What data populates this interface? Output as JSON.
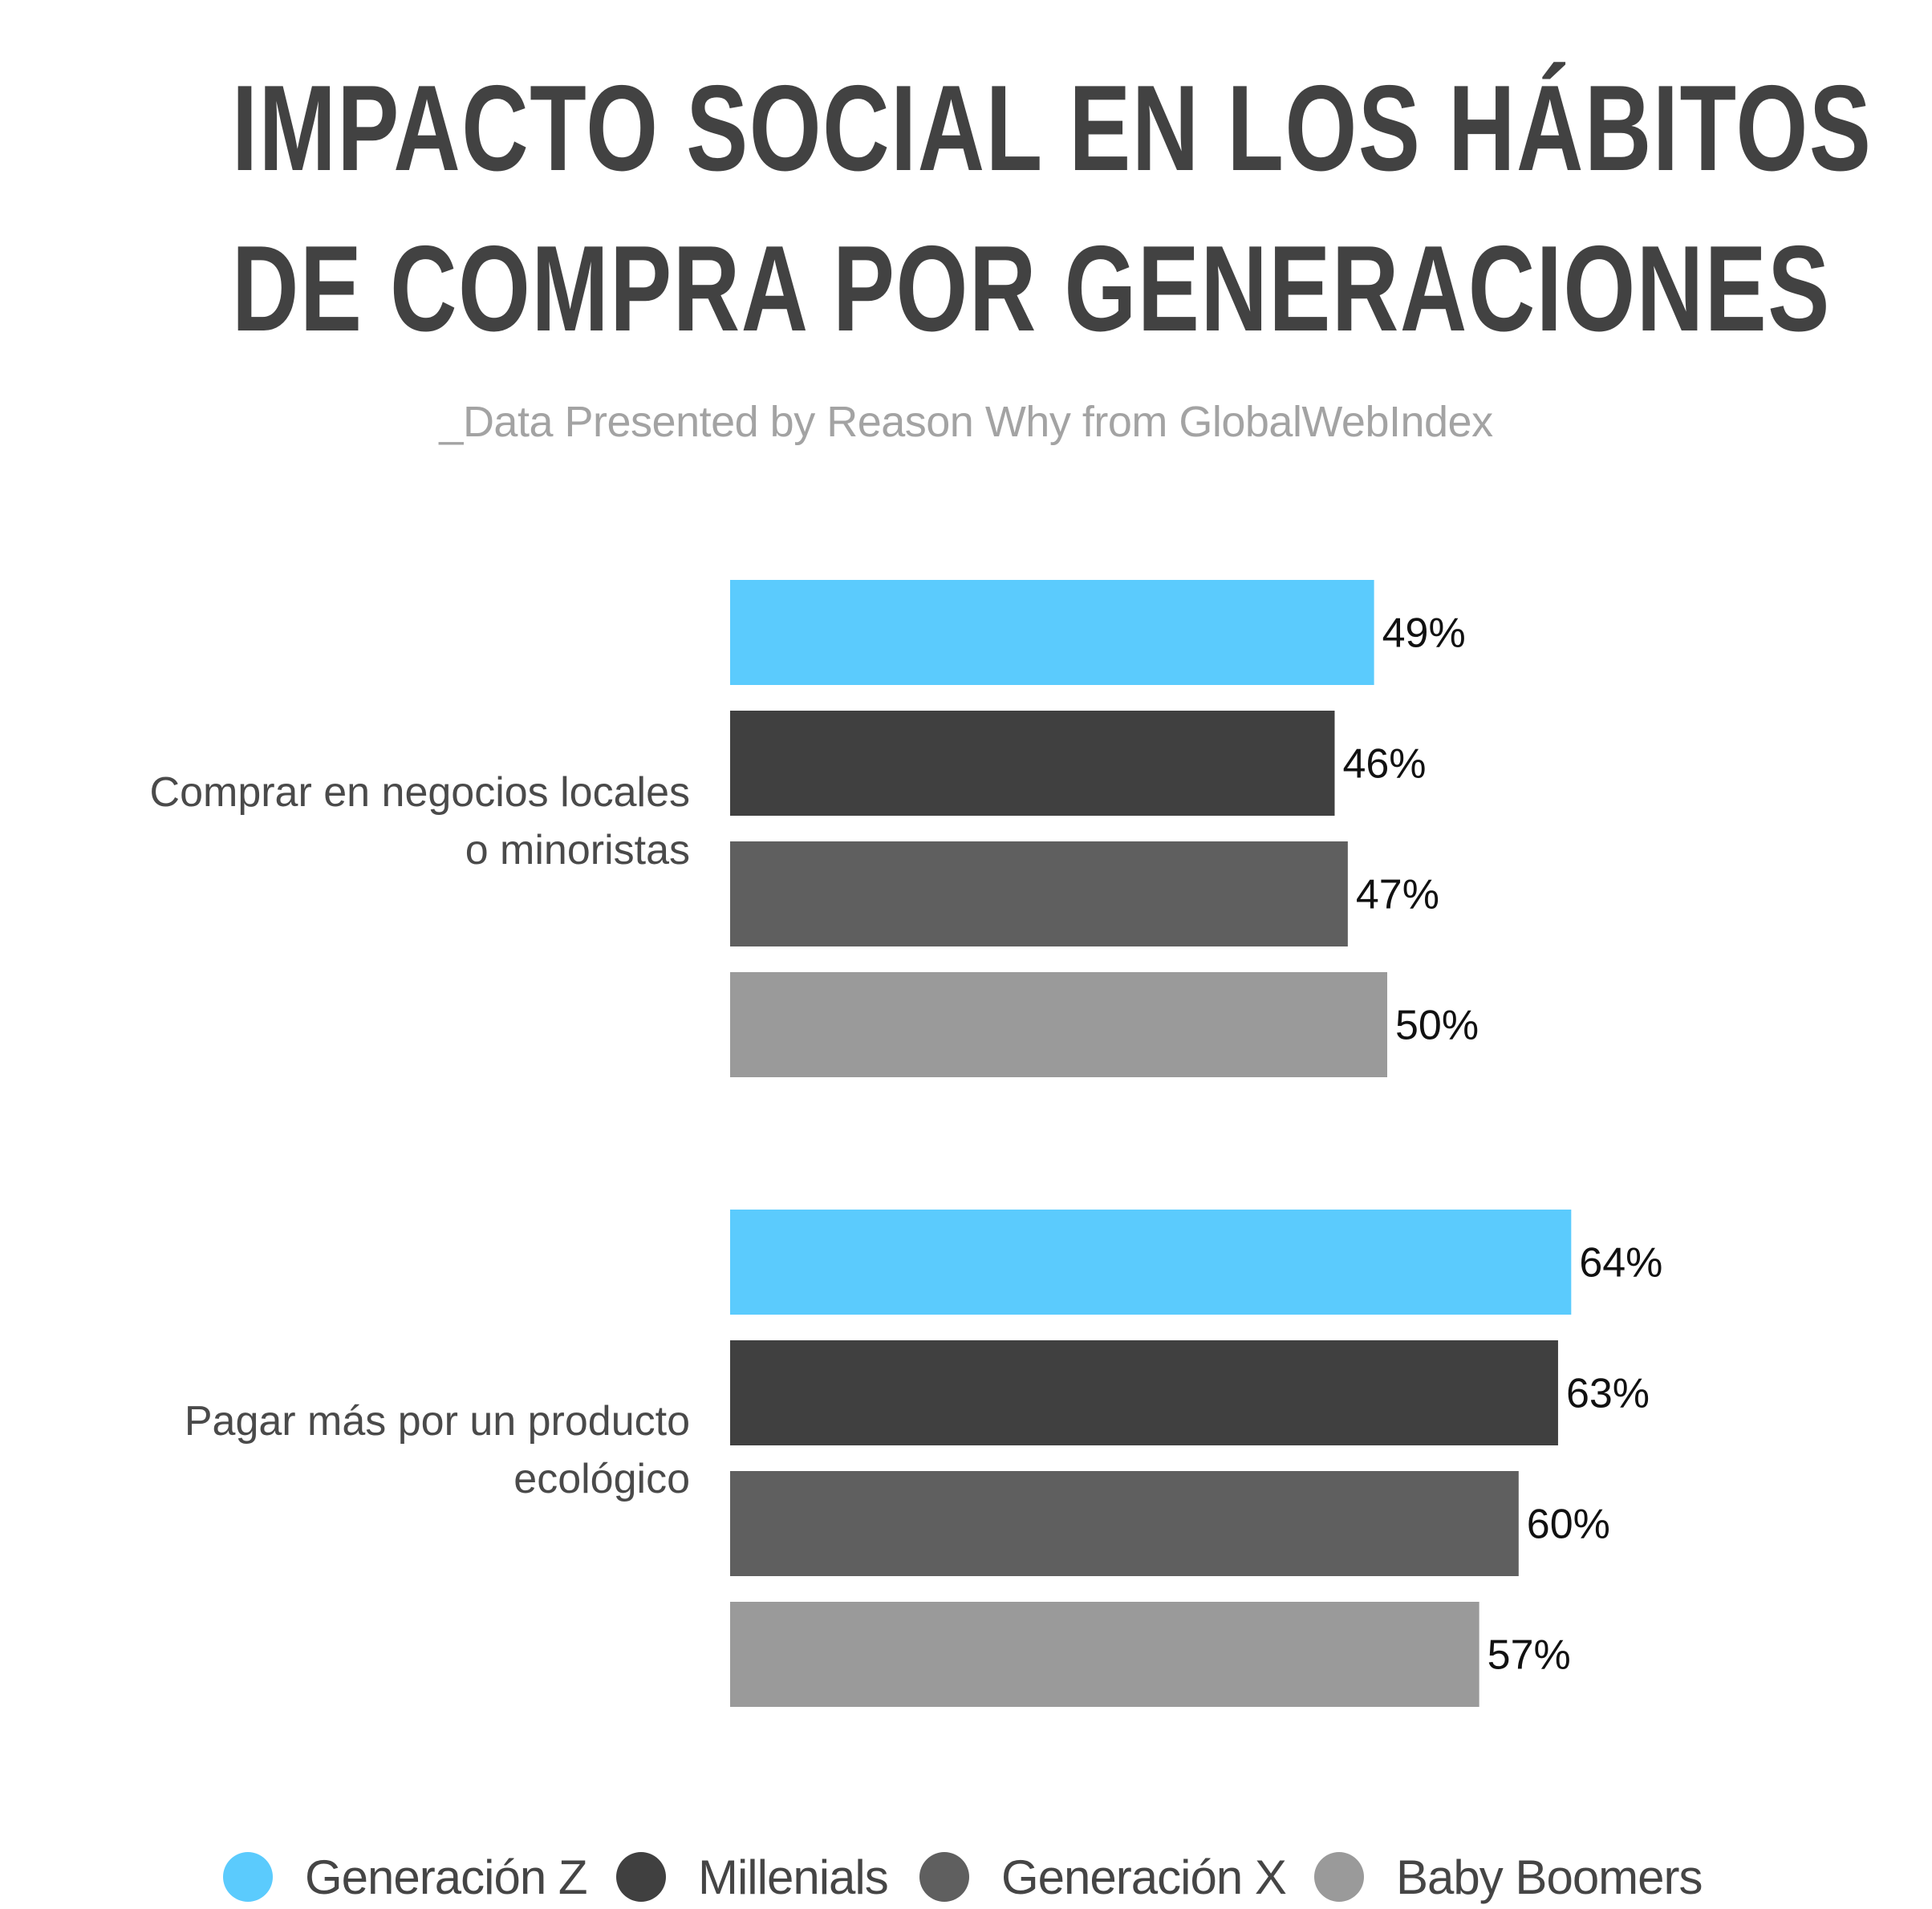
{
  "chart_data": {
    "type": "bar",
    "orientation": "horizontal",
    "title_lines": [
      "IMPACTO SOCIAL EN LOS HÁBITOS",
      "DE COMPRA POR GENERACIONES"
    ],
    "subtitle": "_Data Presented by Reason Why from GlobalWebIndex",
    "categories": [
      [
        "Comprar en negocios locales",
        "o minoristas"
      ],
      [
        "Pagar más por un producto",
        "ecológico"
      ]
    ],
    "series": [
      {
        "name": "Generación Z",
        "color": "#5bcbfd",
        "values": [
          49,
          64
        ],
        "labels": [
          "49%",
          "64%"
        ]
      },
      {
        "name": "Millenials",
        "color": "#404040",
        "values": [
          46,
          63
        ],
        "labels": [
          "46%",
          "63%"
        ]
      },
      {
        "name": "Generación X",
        "color": "#5f5f5f",
        "values": [
          47,
          60
        ],
        "labels": [
          "47%",
          "60%"
        ]
      },
      {
        "name": "Baby Boomers",
        "color": "#9a9a9a",
        "values": [
          50,
          57
        ],
        "labels": [
          "50%",
          "57%"
        ]
      }
    ],
    "xlim": [
      0,
      100
    ],
    "grid": false,
    "legend_position": "bottom"
  }
}
